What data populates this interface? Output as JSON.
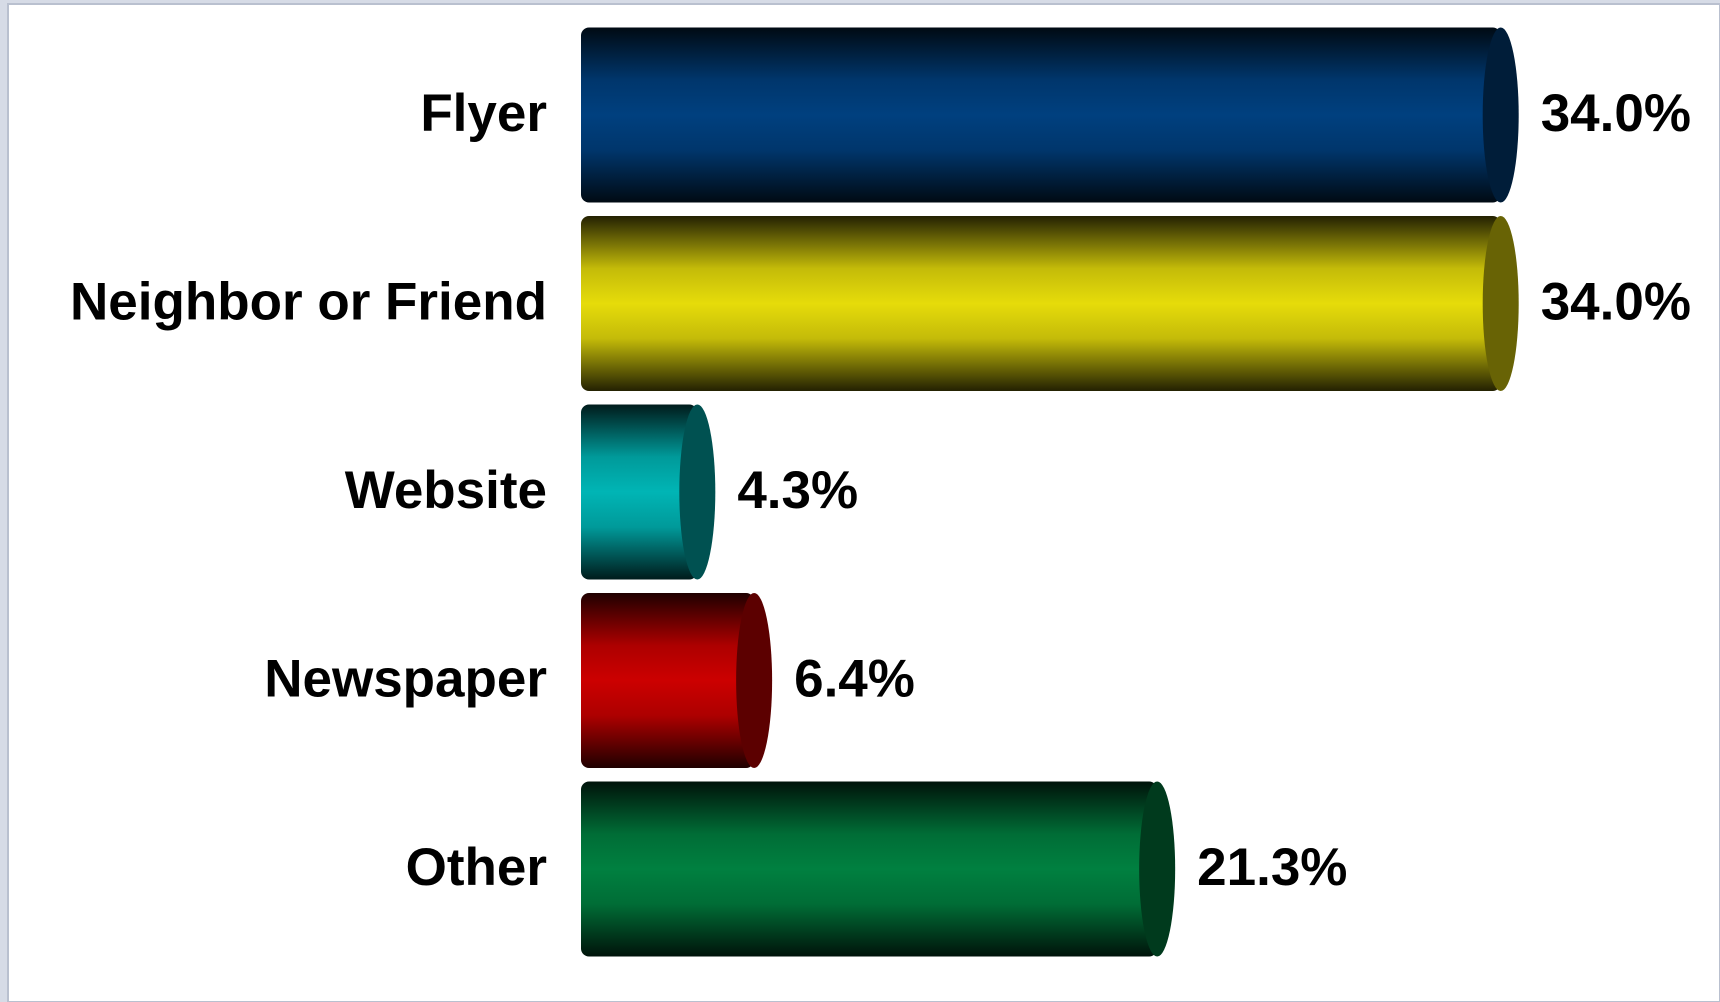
{
  "chart_data": {
    "type": "bar",
    "orientation": "horizontal",
    "categories": [
      "Flyer",
      "Neighbor or Friend",
      "Website",
      "Newspaper",
      "Other"
    ],
    "values": [
      34.0,
      34.0,
      4.3,
      6.4,
      21.3
    ],
    "value_labels": [
      "34.0%",
      "34.0%",
      "4.3%",
      "6.4%",
      "21.3%"
    ],
    "colors": [
      "#00407f",
      "#e6dc0a",
      "#00b5b5",
      "#cc0000",
      "#008040"
    ],
    "xlim": [
      0,
      40
    ]
  }
}
